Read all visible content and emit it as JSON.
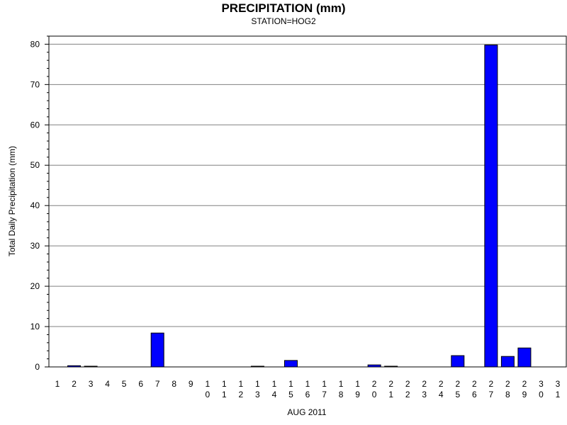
{
  "chart_data": {
    "type": "bar",
    "title": "PRECIPITATION (mm)",
    "subtitle": "STATION=HOG2",
    "xlabel": "AUG 2011",
    "ylabel": "Total Daily Precipitation (mm)",
    "categories": [
      "1",
      "2",
      "3",
      "4",
      "5",
      "6",
      "7",
      "8",
      "9",
      "10",
      "11",
      "12",
      "13",
      "14",
      "15",
      "16",
      "17",
      "18",
      "19",
      "20",
      "21",
      "22",
      "23",
      "24",
      "25",
      "26",
      "27",
      "28",
      "29",
      "30",
      "31"
    ],
    "values": [
      0,
      0.3,
      0.1,
      0,
      0,
      0,
      8.4,
      0,
      0,
      0,
      0,
      0,
      0.1,
      0,
      1.6,
      0,
      0,
      0,
      0,
      0.5,
      0.1,
      0,
      0,
      0,
      2.8,
      0,
      79.8,
      2.6,
      4.7,
      0,
      0
    ],
    "ylim": [
      0,
      82
    ],
    "yticks": [
      0,
      10,
      20,
      30,
      40,
      50,
      60,
      70,
      80
    ],
    "grid": true,
    "bar_color": "#0000ff",
    "bar_edge_color": "#000000"
  }
}
